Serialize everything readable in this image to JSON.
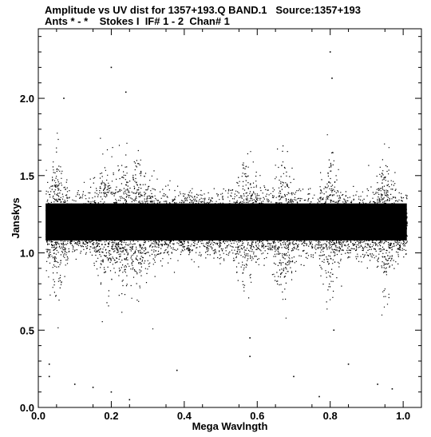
{
  "header": {
    "line1": "Amplitude vs UV dist for 1357+193.Q BAND.1   Source:1357+193",
    "line2": "Ants * - *    Stokes I  IF# 1 - 2  Chan# 1"
  },
  "chart_data": {
    "type": "scatter",
    "title": "Amplitude vs UV dist for 1357+193.Q BAND.1   Source:1357+193",
    "subtitle": "Ants * - *    Stokes I  IF# 1 - 2  Chan# 1",
    "xlabel": "Mega Wavlngth",
    "ylabel": "Janskys",
    "xlim": [
      0.0,
      1.05
    ],
    "ylim": [
      0.0,
      2.45
    ],
    "xticks": [
      {
        "value": 0.0,
        "label": "0.0"
      },
      {
        "value": 0.2,
        "label": "0.2"
      },
      {
        "value": 0.4,
        "label": "0.4"
      },
      {
        "value": 0.6,
        "label": "0.6"
      },
      {
        "value": 0.8,
        "label": "0.8"
      },
      {
        "value": 1.0,
        "label": "1.0"
      }
    ],
    "yticks": [
      {
        "value": 0.0,
        "label": "0.0"
      },
      {
        "value": 0.5,
        "label": "0.5"
      },
      {
        "value": 1.0,
        "label": "1.0"
      },
      {
        "value": 1.5,
        "label": "1.5"
      },
      {
        "value": 2.0,
        "label": "2.0"
      }
    ],
    "grid": false,
    "marker_color": "#000000",
    "x_range": [
      0.02,
      1.01
    ],
    "median_amplitude": 1.18,
    "dense_band": [
      1.0,
      1.4
    ],
    "spikes_x": [
      0.05,
      0.18,
      0.23,
      0.27,
      0.57,
      0.67,
      0.8,
      0.95
    ],
    "outliers": [
      {
        "x": 0.2,
        "y": 2.2
      },
      {
        "x": 0.8,
        "y": 2.3
      },
      {
        "x": 0.805,
        "y": 2.13
      },
      {
        "x": 0.07,
        "y": 2.0
      },
      {
        "x": 0.24,
        "y": 2.04
      },
      {
        "x": 0.58,
        "y": 0.45
      },
      {
        "x": 0.81,
        "y": 0.5
      },
      {
        "x": 0.03,
        "y": 0.28
      },
      {
        "x": 0.03,
        "y": 0.2
      },
      {
        "x": 0.1,
        "y": 0.15
      },
      {
        "x": 0.15,
        "y": 0.13
      },
      {
        "x": 0.2,
        "y": 0.1
      },
      {
        "x": 0.25,
        "y": 0.05
      },
      {
        "x": 0.38,
        "y": 0.24
      },
      {
        "x": 0.58,
        "y": 0.33
      },
      {
        "x": 0.7,
        "y": 0.2
      },
      {
        "x": 0.77,
        "y": 0.07
      },
      {
        "x": 0.85,
        "y": 0.28
      },
      {
        "x": 0.93,
        "y": 0.15
      },
      {
        "x": 0.97,
        "y": 0.12
      }
    ]
  }
}
